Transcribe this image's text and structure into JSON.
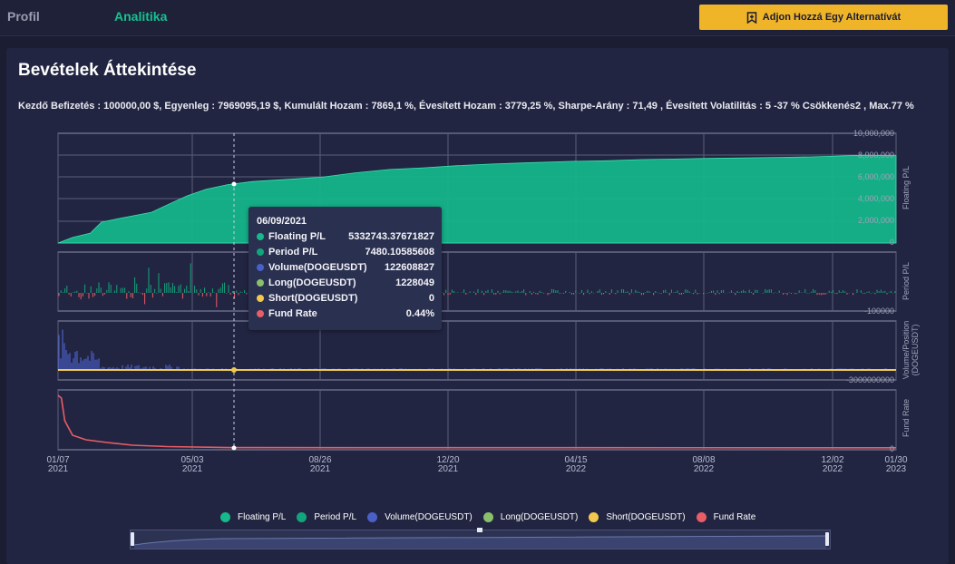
{
  "nav": {
    "profil": "Profil",
    "analitika": "Analitika"
  },
  "add_button": {
    "label": "Adjon Hozzá Egy Alternatívát",
    "icon": "bookmark-add-icon"
  },
  "panel": {
    "title": "Bevételek Áttekintése",
    "stats": "Kezdő Befizetés : 100000,00 $, Egyenleg : 7969095,19 $, Kumulált Hozam : 7869,1 %, Évesített Hozam : 3779,25 %, Sharpe-Arány : 71,49 , Évesített Volatilitás : 5 -37 % Csökkenés2 , Max.77 %"
  },
  "colors": {
    "floating": "#15b98c",
    "period": "#12a57c",
    "volume": "#4b5fc9",
    "long": "#8bc06b",
    "short": "#f2c94c",
    "fund": "#e85d66",
    "accent": "#f0b429",
    "tab_active": "#15c28f"
  },
  "chart_data": {
    "type": "area",
    "x_ticks": [
      {
        "day": "01/07",
        "year": "2021"
      },
      {
        "day": "05/03",
        "year": "2021"
      },
      {
        "day": "08/26",
        "year": "2021"
      },
      {
        "day": "12/20",
        "year": "2021"
      },
      {
        "day": "04/15",
        "year": "2022"
      },
      {
        "day": "08/08",
        "year": "2022"
      },
      {
        "day": "12/02",
        "year": "2022"
      },
      {
        "day": "01/30",
        "year": "2023"
      }
    ],
    "x_range": [
      "2021-01-07",
      "2023-01-30"
    ],
    "panels": [
      {
        "name": "Floating P/L",
        "ylabel": "Floating P/L",
        "ylim": [
          0,
          10000000
        ],
        "y_ticks": [
          "10,000,000",
          "8,000,000",
          "6,000,000",
          "4,000,000",
          "2,000,000",
          "0"
        ],
        "series": [
          {
            "name": "Floating P/L",
            "x": [
              "2021-01-07",
              "2021-01-20",
              "2021-02-05",
              "2021-02-15",
              "2021-03-01",
              "2021-04-01",
              "2021-04-20",
              "2021-05-03",
              "2021-05-20",
              "2021-06-09",
              "2021-07-01",
              "2021-08-01",
              "2021-09-01",
              "2021-10-01",
              "2021-11-01",
              "2021-12-01",
              "2022-01-01",
              "2022-02-01",
              "2022-03-01",
              "2022-04-15",
              "2022-05-15",
              "2022-06-15",
              "2022-07-15",
              "2022-08-08",
              "2022-09-15",
              "2022-10-15",
              "2022-11-15",
              "2022-12-02",
              "2023-01-01",
              "2023-01-30"
            ],
            "y": [
              0,
              500000,
              900000,
              1900000,
              2200000,
              2800000,
              3700000,
              4300000,
              4900000,
              5330000,
              5600000,
              5800000,
              6000000,
              6400000,
              6700000,
              6850000,
              7050000,
              7200000,
              7300000,
              7450000,
              7500000,
              7600000,
              7650000,
              7700000,
              7750000,
              7800000,
              7850000,
              7900000,
              8000000,
              7969095
            ]
          }
        ]
      },
      {
        "name": "Period P/L",
        "ylabel": "Period P/L",
        "y_ticks": [
          "-100000"
        ],
        "series": [
          {
            "name": "Period P/L",
            "note_type": "bar"
          }
        ]
      },
      {
        "name": "Volume/Position",
        "ylabel": "Volume/Position (DOGEUSDT)",
        "y_ticks": [
          "-3000000000"
        ],
        "series": [
          {
            "name": "Volume(DOGEUSDT)"
          },
          {
            "name": "Long(DOGEUSDT)"
          },
          {
            "name": "Short(DOGEUSDT)"
          }
        ]
      },
      {
        "name": "Fund Rate",
        "ylabel": "Fund Rate",
        "y_ticks": [
          "0"
        ],
        "series": [
          {
            "name": "Fund Rate",
            "x": [
              "2021-01-07",
              "2021-01-10",
              "2021-01-13",
              "2021-01-20",
              "2021-02-01",
              "2021-02-20",
              "2021-03-15",
              "2021-04-15",
              "2021-06-09",
              "2022-01-01",
              "2023-01-30"
            ],
            "y": [
              58,
              55,
              30,
              14,
              9,
              6,
              3,
              1.5,
              0.44,
              0.3,
              0.2
            ]
          }
        ]
      }
    ],
    "legend": [
      "Floating P/L",
      "Period P/L",
      "Volume(DOGEUSDT)",
      "Long(DOGEUSDT)",
      "Short(DOGEUSDT)",
      "Fund Rate"
    ],
    "legend_position": "bottom",
    "grid": true
  },
  "tooltip": {
    "date": "06/09/2021",
    "rows": [
      {
        "name": "Floating P/L",
        "value": "5332743.37671827"
      },
      {
        "name": "Period P/L",
        "value": "7480.10585608"
      },
      {
        "name": "Volume(DOGEUSDT)",
        "value": "122608827"
      },
      {
        "name": "Long(DOGEUSDT)",
        "value": "1228049"
      },
      {
        "name": "Short(DOGEUSDT)",
        "value": "0"
      },
      {
        "name": "Fund Rate",
        "value": "0.44%"
      }
    ]
  }
}
